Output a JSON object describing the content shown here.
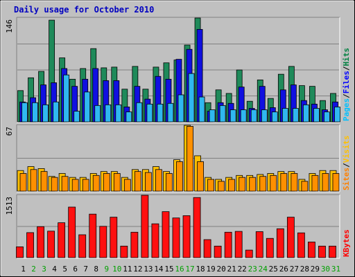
{
  "title": "Daily usage for October 2010",
  "chart_data": {
    "type": "bar",
    "title": "Daily usage for October 2010",
    "categories": [
      "1",
      "2",
      "3",
      "4",
      "5",
      "6",
      "7",
      "8",
      "9",
      "10",
      "11",
      "12",
      "13",
      "14",
      "15",
      "16",
      "17",
      "18",
      "19",
      "20",
      "21",
      "22",
      "23",
      "24",
      "25",
      "26",
      "27",
      "28",
      "29",
      "30",
      "31"
    ],
    "weekend_days": [
      2,
      3,
      9,
      10,
      16,
      17,
      23,
      24,
      30,
      31
    ],
    "panels": [
      {
        "name": "hits_files_pages",
        "ymax_label": "146",
        "ylim": [
          0,
          146
        ],
        "legend": [
          "Pages",
          "/",
          "Files",
          "/",
          "Hits"
        ],
        "legend_colors": [
          "#00c0ff",
          "#000000",
          "#0000ff",
          "#000000",
          "#008040"
        ],
        "series": [
          {
            "name": "Hits",
            "color": "#1f8a5a",
            "values": [
              44,
              62,
              71,
              143,
              90,
              60,
              75,
              103,
              76,
              77,
              46,
              78,
              46,
              77,
              83,
              87,
              108,
              146,
              27,
              45,
              40,
              73,
              29,
              59,
              33,
              67,
              78,
              51,
              50,
              30,
              40
            ]
          },
          {
            "name": "Files",
            "color": "#1010e0",
            "values": [
              28,
              34,
              52,
              55,
              75,
              50,
              60,
              75,
              58,
              58,
              21,
              50,
              32,
              64,
              60,
              88,
              102,
              130,
              15,
              27,
              26,
              49,
              19,
              50,
              20,
              45,
              52,
              30,
              25,
              17,
              28
            ]
          },
          {
            "name": "Pages",
            "color": "#30b8f0",
            "values": [
              27,
              27,
              24,
              28,
              66,
              15,
              42,
              23,
              24,
              24,
              14,
              27,
              25,
              25,
              26,
              38,
              68,
              35,
              17,
              23,
              17,
              17,
              17,
              17,
              14,
              19,
              19,
              24,
              19,
              14,
              21
            ]
          }
        ]
      },
      {
        "name": "sites_visits",
        "ymax_label": "67",
        "ylim": [
          0,
          67
        ],
        "legend": [
          "Sites",
          "/",
          "Visits"
        ],
        "legend_colors": [
          "#ff8000",
          "#000000",
          "#ffc000"
        ],
        "series": [
          {
            "name": "Visits",
            "color": "#ffc000",
            "values": [
              21,
              25,
              23,
              15,
              18,
              14,
              14,
              18,
              20,
              20,
              14,
              22,
              22,
              25,
              20,
              32,
              67,
              36,
              14,
              12,
              14,
              16,
              16,
              17,
              18,
              20,
              20,
              12,
              18,
              21,
              21
            ]
          },
          {
            "name": "Sites",
            "color": "#ff9000",
            "values": [
              18,
              22,
              20,
              14,
              15,
              12,
              12,
              16,
              18,
              18,
              12,
              20,
              19,
              22,
              18,
              30,
              66,
              30,
              12,
              10,
              12,
              14,
              14,
              15,
              16,
              18,
              18,
              10,
              16,
              18,
              18
            ]
          }
        ]
      },
      {
        "name": "kbytes",
        "ymax_label": "1513",
        "ylim": [
          0,
          1513
        ],
        "legend": [
          "KBytes"
        ],
        "legend_colors": [
          "#ff0000"
        ],
        "series": [
          {
            "name": "KBytes",
            "color": "#ff1010",
            "values": [
              262,
              607,
              752,
              643,
              847,
              1227,
              555,
              1056,
              760,
              982,
              280,
              617,
              1513,
              821,
              1116,
              963,
              1018,
              1459,
              437,
              280,
              617,
              637,
              183,
              631,
              467,
              701,
              982,
              601,
              379,
              280,
              280
            ]
          }
        ]
      }
    ]
  }
}
